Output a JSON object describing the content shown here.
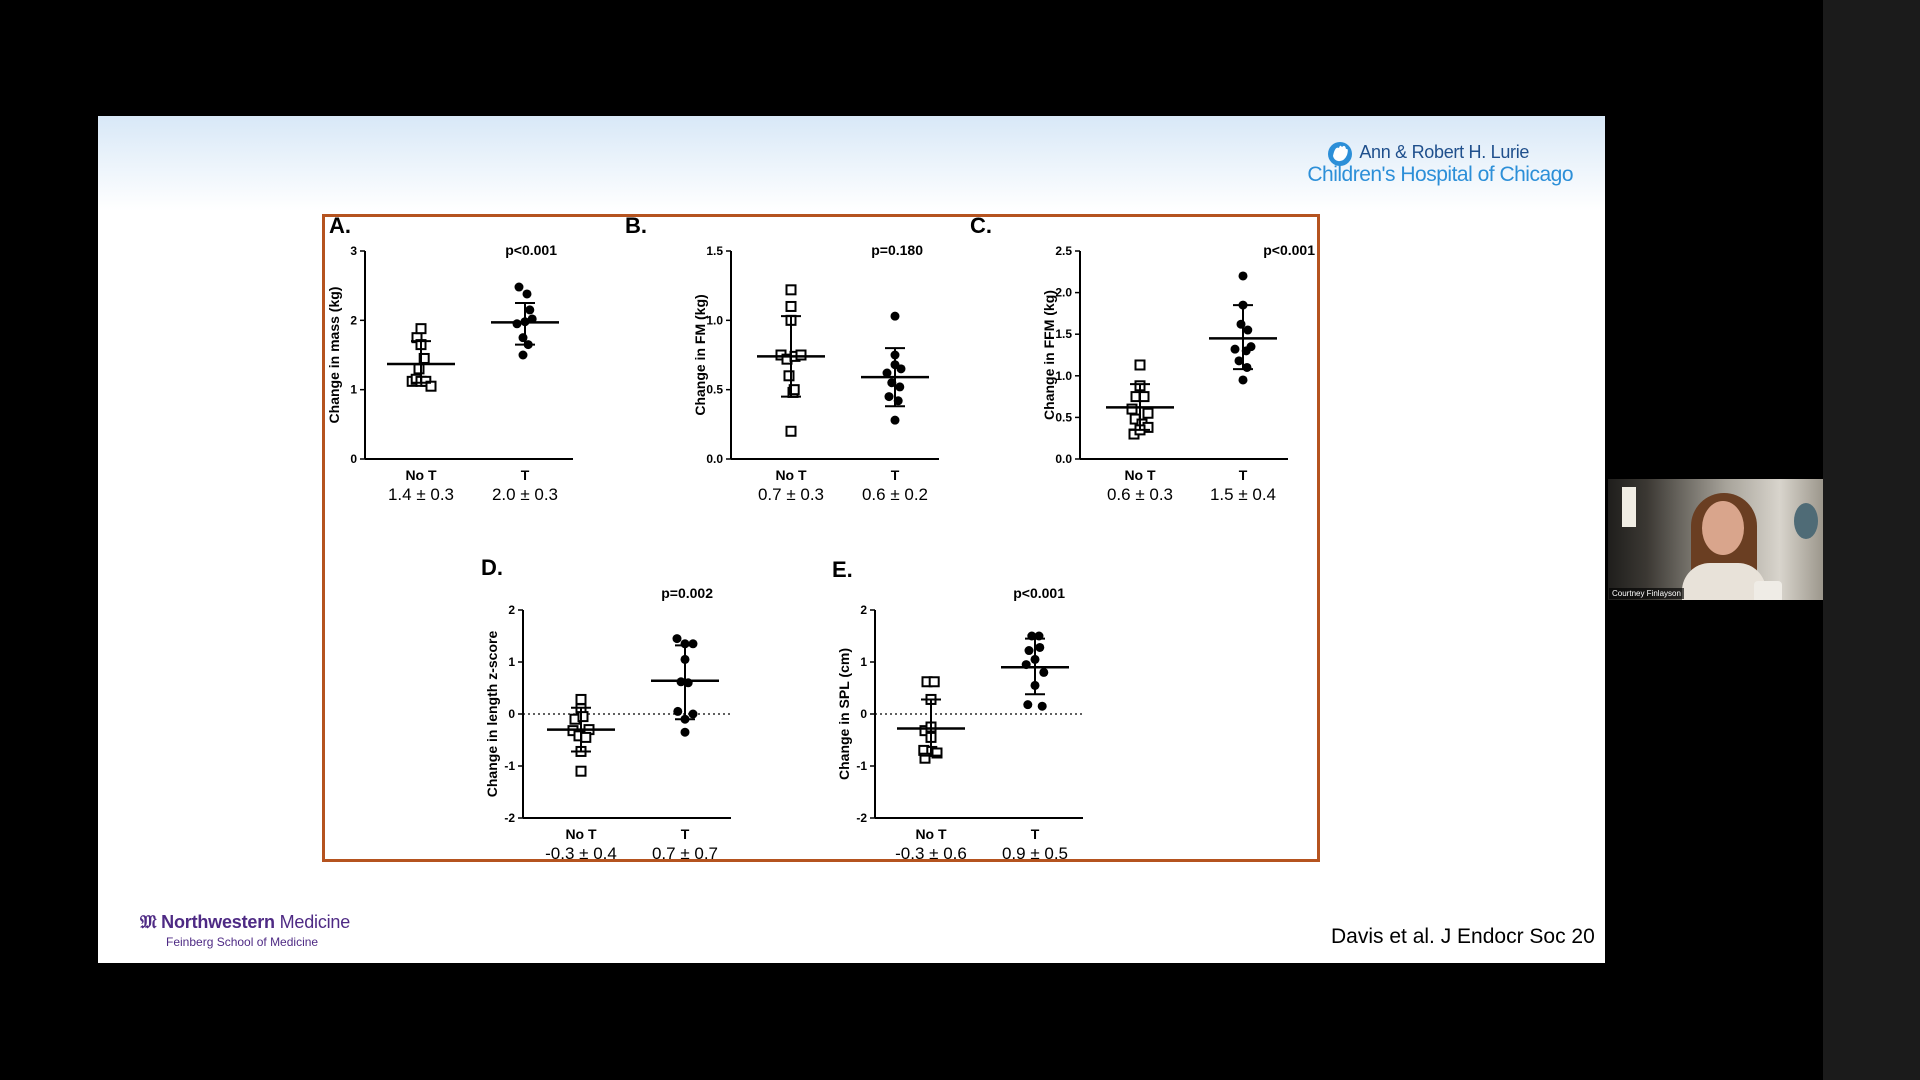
{
  "slide": {
    "logo_lurie_line1": "Ann & Robert H. Lurie",
    "logo_lurie_line2": "Children's Hospital of Chicago",
    "logo_nw_bold": "Northwestern",
    "logo_nw_light": "Medicine",
    "logo_nw_sub": "Feinberg School of Medicine",
    "citation": "Davis et al. J Endocr Soc 20"
  },
  "webcam": {
    "name": "Courtney Finlayson"
  },
  "colors": {
    "frame": "#b5531f",
    "lurie_blue": "#2c8fd8",
    "northwestern_purple": "#4e2a84"
  },
  "chart_data": [
    {
      "type": "scatter",
      "panel": "A.",
      "ylabel": "Change in mass (kg)",
      "ylim": [
        0,
        3
      ],
      "yticks": [
        0,
        1,
        2,
        3
      ],
      "ytick_labels": [
        "0",
        "1",
        "2",
        "3"
      ],
      "pvalue": "p<0.001",
      "zero_line": false,
      "groups": [
        {
          "label": "No T",
          "stat": "1.4 ± 0.3",
          "marker": "open-square",
          "mean": 1.37,
          "sd_low": 1.1,
          "sd_high": 1.7,
          "points": [
            [
              -0.22,
              1.12
            ],
            [
              -0.12,
              1.15
            ],
            [
              0.0,
              1.12
            ],
            [
              0.12,
              1.12
            ],
            [
              0.25,
              1.05
            ],
            [
              -0.1,
              1.75
            ],
            [
              0.0,
              1.88
            ],
            [
              0.0,
              1.65
            ],
            [
              0.08,
              1.45
            ],
            [
              -0.05,
              1.3
            ]
          ]
        },
        {
          "label": "T",
          "stat": "2.0 ± 0.3",
          "marker": "filled-circle",
          "mean": 1.97,
          "sd_low": 1.65,
          "sd_high": 2.25,
          "points": [
            [
              -0.15,
              2.48
            ],
            [
              0.05,
              2.38
            ],
            [
              -0.2,
              1.95
            ],
            [
              0.0,
              1.98
            ],
            [
              0.18,
              2.02
            ],
            [
              -0.05,
              1.75
            ],
            [
              0.08,
              1.65
            ],
            [
              -0.05,
              1.5
            ],
            [
              0.12,
              2.15
            ]
          ]
        }
      ]
    },
    {
      "type": "scatter",
      "panel": "B.",
      "ylabel": "Change in FM (kg)",
      "ylim": [
        0,
        1.5
      ],
      "yticks": [
        0,
        0.5,
        1.0,
        1.5
      ],
      "ytick_labels": [
        "0.0",
        "0.5",
        "1.0",
        "1.5"
      ],
      "pvalue": "p=0.180",
      "zero_line": false,
      "groups": [
        {
          "label": "No T",
          "stat": "0.7 ± 0.3",
          "marker": "open-square",
          "mean": 0.74,
          "sd_low": 0.45,
          "sd_high": 1.03,
          "points": [
            [
              0.0,
              1.22
            ],
            [
              0.0,
              1.1
            ],
            [
              0.0,
              1.0
            ],
            [
              -0.25,
              0.75
            ],
            [
              -0.1,
              0.72
            ],
            [
              0.1,
              0.74
            ],
            [
              0.25,
              0.75
            ],
            [
              -0.05,
              0.6
            ],
            [
              0.05,
              0.48
            ],
            [
              0.08,
              0.5
            ],
            [
              0.0,
              0.2
            ]
          ]
        },
        {
          "label": "T",
          "stat": "0.6 ± 0.2",
          "marker": "filled-circle",
          "mean": 0.59,
          "sd_low": 0.38,
          "sd_high": 0.8,
          "points": [
            [
              0.0,
              1.03
            ],
            [
              0.0,
              0.75
            ],
            [
              0.0,
              0.68
            ],
            [
              -0.2,
              0.62
            ],
            [
              0.15,
              0.65
            ],
            [
              -0.08,
              0.55
            ],
            [
              0.12,
              0.52
            ],
            [
              -0.15,
              0.45
            ],
            [
              0.08,
              0.42
            ],
            [
              0.0,
              0.28
            ]
          ]
        }
      ]
    },
    {
      "type": "scatter",
      "panel": "C.",
      "ylabel": "Change in FFM (kg)",
      "ylim": [
        0,
        2.5
      ],
      "yticks": [
        0,
        0.5,
        1.0,
        1.5,
        2.0,
        2.5
      ],
      "ytick_labels": [
        "0.0",
        "0.5",
        "1.0",
        "1.5",
        "2.0",
        "2.5"
      ],
      "pvalue": "p<0.001",
      "zero_line": false,
      "groups": [
        {
          "label": "No T",
          "stat": "0.6 ± 0.3",
          "marker": "open-square",
          "mean": 0.62,
          "sd_low": 0.35,
          "sd_high": 0.9,
          "points": [
            [
              0.0,
              1.13
            ],
            [
              0.0,
              0.88
            ],
            [
              -0.1,
              0.75
            ],
            [
              0.1,
              0.75
            ],
            [
              -0.2,
              0.6
            ],
            [
              0.2,
              0.55
            ],
            [
              -0.12,
              0.48
            ],
            [
              0.05,
              0.42
            ],
            [
              0.2,
              0.38
            ],
            [
              -0.15,
              0.3
            ],
            [
              0.0,
              0.35
            ]
          ]
        },
        {
          "label": "T",
          "stat": "1.5 ± 0.4",
          "marker": "filled-circle",
          "mean": 1.45,
          "sd_low": 1.08,
          "sd_high": 1.85,
          "points": [
            [
              0.0,
              2.2
            ],
            [
              0.0,
              1.85
            ],
            [
              -0.05,
              1.62
            ],
            [
              0.12,
              1.55
            ],
            [
              -0.2,
              1.32
            ],
            [
              0.08,
              1.3
            ],
            [
              0.2,
              1.35
            ],
            [
              -0.1,
              1.18
            ],
            [
              0.1,
              1.1
            ],
            [
              0.0,
              0.95
            ]
          ]
        }
      ]
    },
    {
      "type": "scatter",
      "panel": "D.",
      "ylabel": "Change in length z-score",
      "ylim": [
        -2,
        2
      ],
      "yticks": [
        -2,
        -1,
        0,
        1,
        2
      ],
      "ytick_labels": [
        "-2",
        "-1",
        "0",
        "1",
        "2"
      ],
      "pvalue": "p=0.002",
      "zero_line": true,
      "groups": [
        {
          "label": "No T",
          "stat": "-0.3 ± 0.4",
          "marker": "open-square",
          "mean": -0.3,
          "sd_low": -0.72,
          "sd_high": 0.12,
          "points": [
            [
              0.0,
              0.28
            ],
            [
              0.0,
              0.1
            ],
            [
              -0.15,
              -0.1
            ],
            [
              0.05,
              -0.05
            ],
            [
              -0.2,
              -0.32
            ],
            [
              0.2,
              -0.3
            ],
            [
              -0.05,
              -0.42
            ],
            [
              0.12,
              -0.45
            ],
            [
              0.0,
              -0.72
            ],
            [
              0.0,
              -1.1
            ]
          ]
        },
        {
          "label": "T",
          "stat": "0.7 ± 0.7",
          "marker": "filled-circle",
          "mean": 0.64,
          "sd_low": -0.1,
          "sd_high": 1.32,
          "points": [
            [
              -0.2,
              1.45
            ],
            [
              0.0,
              1.35
            ],
            [
              0.2,
              1.35
            ],
            [
              0.0,
              1.05
            ],
            [
              -0.1,
              0.62
            ],
            [
              0.08,
              0.6
            ],
            [
              -0.18,
              0.05
            ],
            [
              0.2,
              0.0
            ],
            [
              0.0,
              -0.1
            ],
            [
              0.0,
              -0.35
            ]
          ]
        }
      ]
    },
    {
      "type": "scatter",
      "panel": "E.",
      "ylabel": "Change in SPL (cm)",
      "ylim": [
        -2,
        2
      ],
      "yticks": [
        -2,
        -1,
        0,
        1,
        2
      ],
      "ytick_labels": [
        "-2",
        "-1",
        "0",
        "1",
        "2"
      ],
      "pvalue": "p<0.001",
      "zero_line": true,
      "groups": [
        {
          "label": "No T",
          "stat": "-0.3 ± 0.6",
          "marker": "open-square",
          "mean": -0.28,
          "sd_low": -0.8,
          "sd_high": 0.28,
          "points": [
            [
              -0.1,
              0.62
            ],
            [
              0.08,
              0.62
            ],
            [
              0.0,
              0.28
            ],
            [
              -0.15,
              -0.32
            ],
            [
              0.0,
              -0.25
            ],
            [
              0.0,
              -0.45
            ],
            [
              -0.18,
              -0.7
            ],
            [
              0.02,
              -0.72
            ],
            [
              0.15,
              -0.75
            ],
            [
              -0.15,
              -0.85
            ]
          ]
        },
        {
          "label": "T",
          "stat": "0.9 ± 0.5",
          "marker": "filled-circle",
          "mean": 0.9,
          "sd_low": 0.38,
          "sd_high": 1.45,
          "points": [
            [
              -0.08,
              1.5
            ],
            [
              0.1,
              1.5
            ],
            [
              -0.15,
              1.22
            ],
            [
              0.12,
              1.28
            ],
            [
              0.0,
              1.05
            ],
            [
              -0.22,
              0.95
            ],
            [
              0.22,
              0.8
            ],
            [
              0.0,
              0.55
            ],
            [
              -0.18,
              0.18
            ],
            [
              0.18,
              0.15
            ]
          ]
        }
      ]
    }
  ]
}
